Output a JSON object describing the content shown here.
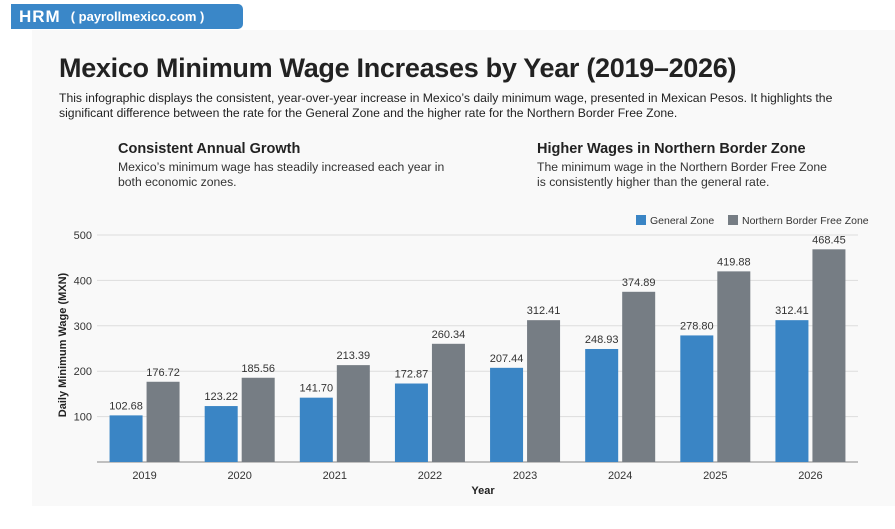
{
  "brand": {
    "logo": "HRM",
    "url": "( payrollmexico.com )"
  },
  "title": "Mexico Minimum Wage Increases by Year (2019–2026)",
  "description": "This infographic displays the consistent, year-over-year increase in Mexico’s daily minimum wage, presented in Mexican Pesos. It highlights the significant difference between the rate for the General Zone and the higher rate for the Northern Border Free Zone.",
  "highlights": [
    {
      "heading": "Consistent Annual Growth",
      "text": "Mexico’s minimum wage has steadily increased each year in both economic zones."
    },
    {
      "heading": "Higher Wages in Northern Border Zone",
      "text": "The minimum wage in the Northern Border Free Zone is consistently higher than the general rate."
    }
  ],
  "colors": {
    "general": "#3a85c5",
    "northern": "#767d84",
    "brand": "#3a87c8"
  },
  "chart_data": {
    "type": "bar",
    "title": "",
    "xlabel": "Year",
    "ylabel": "Daily Minimum Wage (MXN)",
    "ylim": [
      0,
      500
    ],
    "yticks": [
      100,
      200,
      300,
      400,
      500
    ],
    "grid": true,
    "legend_position": "top-right",
    "categories": [
      "2019",
      "2020",
      "2021",
      "2022",
      "2023",
      "2024",
      "2025",
      "2026"
    ],
    "series": [
      {
        "name": "General Zone",
        "values": [
          102.68,
          123.22,
          141.7,
          172.87,
          207.44,
          248.93,
          278.8,
          312.41
        ]
      },
      {
        "name": "Northern Border Free Zone",
        "values": [
          176.72,
          185.56,
          213.39,
          260.34,
          312.41,
          374.89,
          419.88,
          468.45
        ]
      }
    ]
  }
}
